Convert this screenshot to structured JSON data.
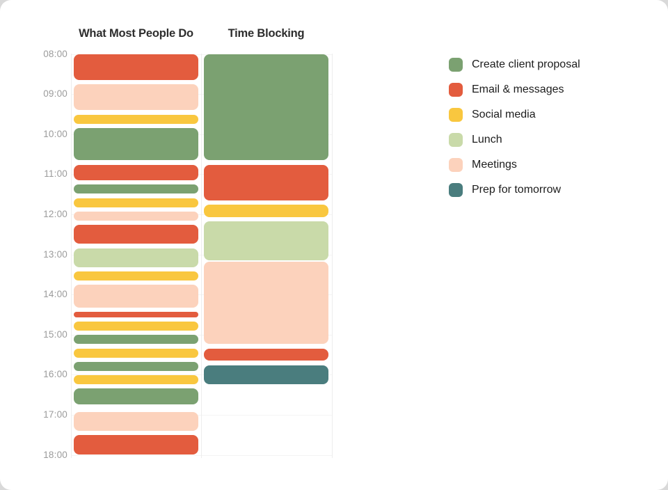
{
  "chart_data": {
    "type": "schedule-comparison",
    "title": "",
    "time_axis": {
      "start": "08:00",
      "end": "18:00",
      "tick_labels": [
        "08:00",
        "09:00",
        "10:00",
        "11:00",
        "12:00",
        "13:00",
        "14:00",
        "15:00",
        "16:00",
        "17:00",
        "18:00"
      ]
    },
    "categories": {
      "proposal": {
        "label": "Create client proposal",
        "color": "#7BA171"
      },
      "email": {
        "label": "Email & messages",
        "color": "#E35C3E"
      },
      "social": {
        "label": "Social media",
        "color": "#F9C73F"
      },
      "lunch": {
        "label": "Lunch",
        "color": "#C9DAA9"
      },
      "meetings": {
        "label": "Meetings",
        "color": "#FCD2BC"
      },
      "prep": {
        "label": "Prep for tomorrow",
        "color": "#4A7D7E"
      }
    },
    "legend_order": [
      "proposal",
      "email",
      "social",
      "lunch",
      "meetings",
      "prep"
    ],
    "columns": [
      {
        "title": "What Most People Do",
        "events": [
          {
            "category": "email",
            "start": "08:00",
            "end": "08:40"
          },
          {
            "category": "meetings",
            "start": "08:45",
            "end": "09:25"
          },
          {
            "category": "social",
            "start": "09:30",
            "end": "09:45"
          },
          {
            "category": "proposal",
            "start": "09:50",
            "end": "10:40"
          },
          {
            "category": "email",
            "start": "10:45",
            "end": "11:10"
          },
          {
            "category": "proposal",
            "start": "11:15",
            "end": "11:30"
          },
          {
            "category": "social",
            "start": "11:35",
            "end": "11:50"
          },
          {
            "category": "meetings",
            "start": "11:55",
            "end": "12:10"
          },
          {
            "category": "email",
            "start": "12:15",
            "end": "12:45"
          },
          {
            "category": "lunch",
            "start": "12:50",
            "end": "13:20"
          },
          {
            "category": "social",
            "start": "13:25",
            "end": "13:40"
          },
          {
            "category": "meetings",
            "start": "13:45",
            "end": "14:20"
          },
          {
            "category": "email",
            "start": "14:25",
            "end": "14:35"
          },
          {
            "category": "social",
            "start": "14:40",
            "end": "14:55"
          },
          {
            "category": "proposal",
            "start": "15:00",
            "end": "15:15"
          },
          {
            "category": "social",
            "start": "15:20",
            "end": "15:35"
          },
          {
            "category": "proposal",
            "start": "15:40",
            "end": "15:55"
          },
          {
            "category": "social",
            "start": "16:00",
            "end": "16:15"
          },
          {
            "category": "proposal",
            "start": "16:20",
            "end": "16:45"
          },
          {
            "category": "meetings",
            "start": "16:55",
            "end": "17:25"
          },
          {
            "category": "email",
            "start": "17:30",
            "end": "18:00"
          }
        ]
      },
      {
        "title": "Time Blocking",
        "events": [
          {
            "category": "proposal",
            "start": "08:00",
            "end": "10:40"
          },
          {
            "category": "email",
            "start": "10:45",
            "end": "11:40"
          },
          {
            "category": "social",
            "start": "11:45",
            "end": "12:05"
          },
          {
            "category": "lunch",
            "start": "12:10",
            "end": "13:10"
          },
          {
            "category": "meetings",
            "start": "13:10",
            "end": "15:15"
          },
          {
            "category": "email",
            "start": "15:20",
            "end": "15:40"
          },
          {
            "category": "prep",
            "start": "15:45",
            "end": "16:15"
          }
        ]
      }
    ]
  }
}
